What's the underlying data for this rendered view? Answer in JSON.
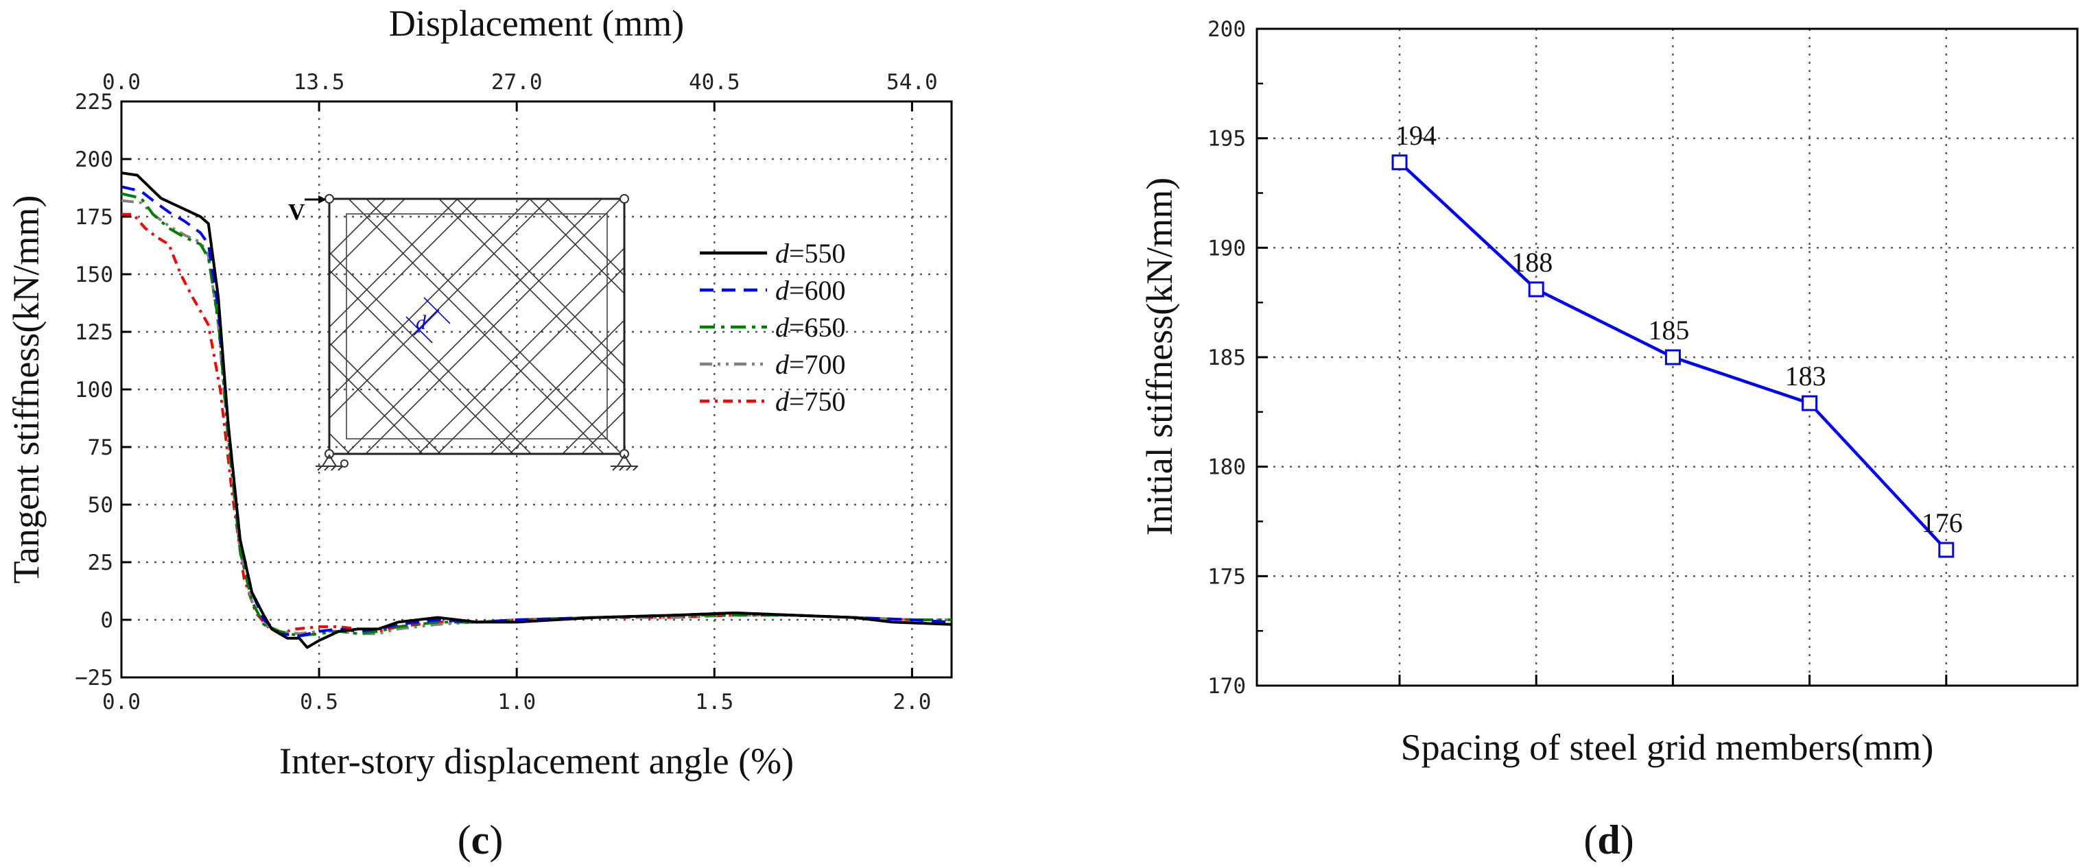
{
  "panel_c": {
    "label_open": "(",
    "label_letter": "c",
    "label_close": ")",
    "inset": {
      "load_label": "V",
      "dim_label": "d"
    }
  },
  "panel_d": {
    "label_open": "(",
    "label_letter": "d",
    "label_close": ")"
  },
  "colors": {
    "d550": "#000000",
    "d600": "#0000ff",
    "d650": "#008000",
    "d700": "#808080",
    "d750": "#ff0000",
    "line_d": "#0000ff"
  },
  "chart_data": [
    {
      "type": "line",
      "xlabel": "Inter-story displacement angle (%)",
      "x2label": "Displacement (mm)",
      "ylabel": "Tangent stiffness(kN/mm)",
      "xlim": [
        0,
        2.1
      ],
      "ylim": [
        -25,
        225
      ],
      "x2lim": [
        0,
        56.7
      ],
      "x_ticks": [
        "0.0",
        "0.5",
        "1.0",
        "1.5",
        "2.0"
      ],
      "x_tick_values": [
        0,
        0.5,
        1.0,
        1.5,
        2.0
      ],
      "x2_ticks": [
        "0.0",
        "13.5",
        "27.0",
        "40.5",
        "54.0"
      ],
      "x2_tick_values": [
        0,
        13.5,
        27.0,
        40.5,
        54.0
      ],
      "y_ticks": [
        "225",
        "200",
        "175",
        "150",
        "125",
        "100",
        "75",
        "50",
        "25",
        "0",
        "−25"
      ],
      "y_tick_values": [
        225,
        200,
        175,
        150,
        125,
        100,
        75,
        50,
        25,
        0,
        -25
      ],
      "grid": true,
      "legend_position": "right",
      "series": [
        {
          "name_prefix": "d",
          "name_suffix": "=550",
          "style": "solid",
          "x": [
            0,
            0.04,
            0.07,
            0.1,
            0.15,
            0.2,
            0.22,
            0.245,
            0.27,
            0.3,
            0.33,
            0.36,
            0.38,
            0.42,
            0.45,
            0.47,
            0.5,
            0.55,
            0.6,
            0.65,
            0.7,
            0.75,
            0.8,
            0.85,
            0.9,
            1.0,
            1.2,
            1.4,
            1.55,
            1.7,
            1.85,
            1.95,
            2.1
          ],
          "y": [
            194,
            193,
            188,
            183,
            179,
            175,
            172,
            140,
            85,
            35,
            12,
            2,
            -4,
            -8,
            -8,
            -12,
            -9,
            -5,
            -4,
            -4,
            -1,
            0,
            1,
            0,
            -1,
            -1,
            1,
            2,
            3,
            2,
            1,
            -1,
            -2
          ]
        },
        {
          "name_prefix": "d",
          "name_suffix": "=600",
          "style": "dashed",
          "x": [
            0,
            0.05,
            0.08,
            0.12,
            0.16,
            0.2,
            0.22,
            0.245,
            0.27,
            0.3,
            0.33,
            0.36,
            0.4,
            0.45,
            0.5,
            0.55,
            0.6,
            0.65,
            0.7,
            0.8,
            0.9,
            1.0,
            1.2,
            1.4,
            1.55,
            1.7,
            1.85,
            2.0,
            2.1
          ],
          "y": [
            188,
            186,
            182,
            177,
            173,
            168,
            163,
            135,
            85,
            35,
            12,
            0,
            -6,
            -7,
            -5,
            -4,
            -5,
            -4,
            -2,
            0,
            -1,
            0,
            1,
            2,
            3,
            2,
            1,
            0,
            -1
          ]
        },
        {
          "name_prefix": "d",
          "name_suffix": "=650",
          "style": "dashdot",
          "x": [
            0,
            0.05,
            0.08,
            0.12,
            0.16,
            0.2,
            0.22,
            0.245,
            0.27,
            0.3,
            0.33,
            0.36,
            0.4,
            0.45,
            0.5,
            0.55,
            0.6,
            0.65,
            0.7,
            0.8,
            0.9,
            1.0,
            1.2,
            1.4,
            1.55,
            1.7,
            1.85,
            2.0,
            2.1
          ],
          "y": [
            185,
            183,
            176,
            170,
            166,
            163,
            157,
            130,
            80,
            30,
            8,
            -2,
            -5,
            -7,
            -6,
            -5,
            -6,
            -5,
            -3,
            -1,
            -1,
            0,
            1,
            2,
            2,
            2,
            1,
            0,
            0
          ]
        },
        {
          "name_prefix": "d",
          "name_suffix": "=700",
          "style": "dashdotdot",
          "x": [
            0,
            0.05,
            0.08,
            0.12,
            0.16,
            0.2,
            0.22,
            0.245,
            0.27,
            0.3,
            0.33,
            0.36,
            0.4,
            0.45,
            0.5,
            0.55,
            0.6,
            0.65,
            0.7,
            0.8,
            0.9,
            1.0,
            1.2,
            1.4,
            1.55,
            1.7,
            1.85,
            2.0,
            2.1
          ],
          "y": [
            182,
            181,
            176,
            171,
            167,
            164,
            158,
            128,
            78,
            30,
            8,
            -2,
            -5,
            -6,
            -5,
            -5,
            -6,
            -6,
            -4,
            -2,
            -1,
            0,
            1,
            1,
            2,
            2,
            1,
            0,
            0
          ]
        },
        {
          "name_prefix": "d",
          "name_suffix": "=750",
          "style": "dashdot_red",
          "x": [
            0,
            0.03,
            0.06,
            0.09,
            0.12,
            0.15,
            0.18,
            0.22,
            0.25,
            0.28,
            0.31,
            0.34,
            0.37,
            0.4,
            0.44,
            0.5,
            0.55,
            0.6,
            0.65,
            0.7,
            0.8,
            0.9,
            1.0,
            1.2,
            1.4,
            1.55,
            1.7,
            1.85,
            2.0,
            2.1
          ],
          "y": [
            176,
            176,
            170,
            166,
            163,
            150,
            140,
            128,
            100,
            55,
            18,
            3,
            -3,
            -6,
            -4,
            -3,
            -3,
            -4,
            -5,
            -3,
            -1,
            -1,
            0,
            1,
            1,
            2,
            2,
            1,
            0,
            0
          ]
        }
      ]
    },
    {
      "type": "line",
      "xlabel": "Spacing of steel grid members(mm)",
      "ylabel": "Initial stiffness(kN/mm)",
      "ylim": [
        170,
        200
      ],
      "y_ticks": [
        "200",
        "195",
        "190",
        "185",
        "180",
        "175",
        "170"
      ],
      "y_tick_values": [
        200,
        195,
        190,
        185,
        180,
        175,
        170
      ],
      "grid": true,
      "series": [
        {
          "values": [
            193.9,
            188.1,
            185.0,
            182.9,
            176.2
          ],
          "labels": [
            "194",
            "188",
            "185",
            "183",
            "176"
          ]
        }
      ]
    }
  ]
}
